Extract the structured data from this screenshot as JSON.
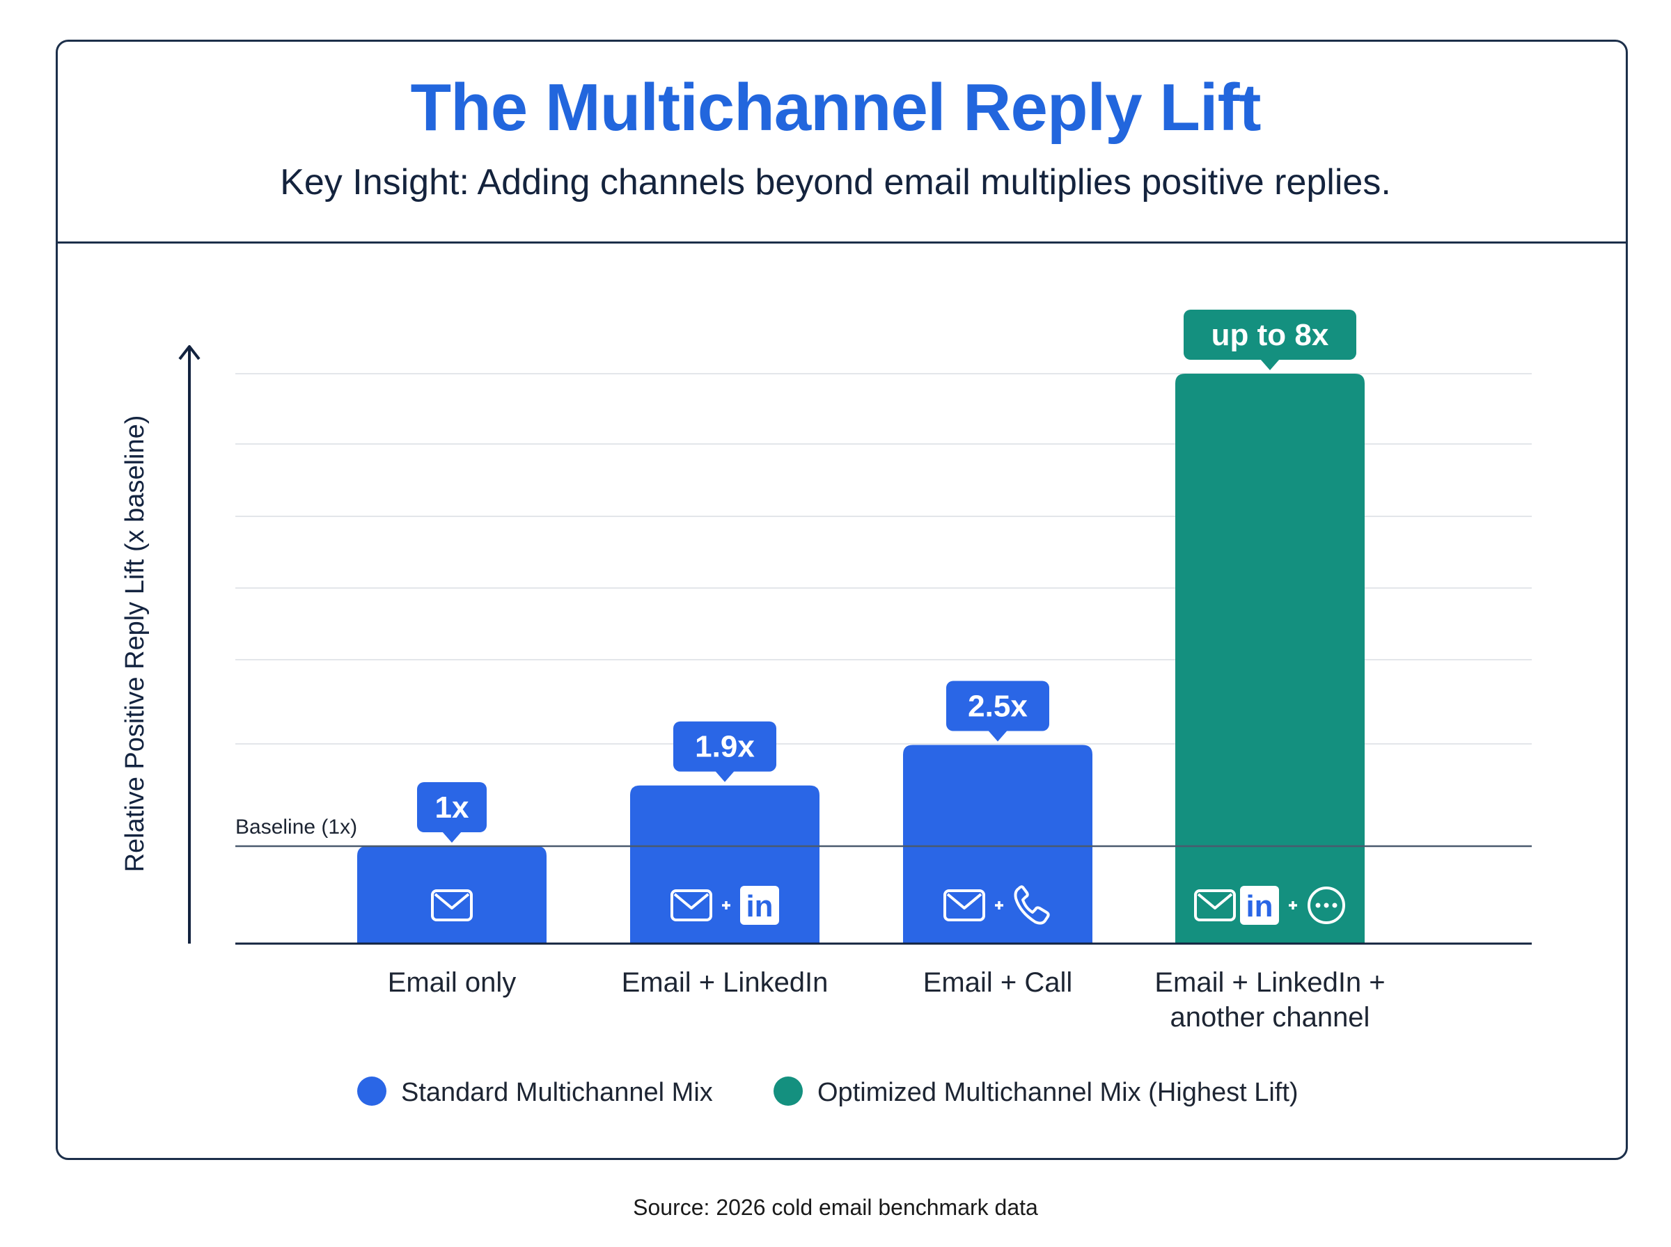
{
  "header": {
    "title": "The Multichannel Reply Lift",
    "subtitle": "Key Insight: Adding channels beyond email multiplies positive replies."
  },
  "source": "Source: 2026 cold email benchmark data",
  "colors": {
    "standard": "#2a66e6",
    "optimized": "#14907f",
    "axis": "#13233f",
    "title": "#2266dd"
  },
  "chart_data": {
    "type": "bar",
    "ylabel": "Relative Positive Reply Lift (x baseline)",
    "baseline": {
      "label": "Baseline (1x)",
      "value": 1
    },
    "categories": [
      {
        "lines": [
          "Email only"
        ],
        "value": 1,
        "label": "1x",
        "series": "standard",
        "icons": [
          "mail-icon"
        ]
      },
      {
        "lines": [
          "Email + LinkedIn"
        ],
        "value": 1.9,
        "label": "1.9x",
        "series": "standard",
        "icons": [
          "mail-icon",
          "plus",
          "linkedin-icon"
        ]
      },
      {
        "lines": [
          "Email + Call"
        ],
        "value": 2.5,
        "label": "2.5x",
        "series": "standard",
        "icons": [
          "mail-icon",
          "plus",
          "phone-icon"
        ]
      },
      {
        "lines": [
          "Email + LinkedIn +",
          "another channel"
        ],
        "value": 8,
        "label": "up to 8x",
        "series": "optimized",
        "icons": [
          "mail-icon",
          "linkedin-icon",
          "plus",
          "more-icon"
        ]
      }
    ],
    "legend": [
      {
        "key": "standard",
        "label": "Standard Multichannel Mix"
      },
      {
        "key": "optimized",
        "label": "Optimized Multichannel Mix (Highest Lift)"
      }
    ]
  }
}
